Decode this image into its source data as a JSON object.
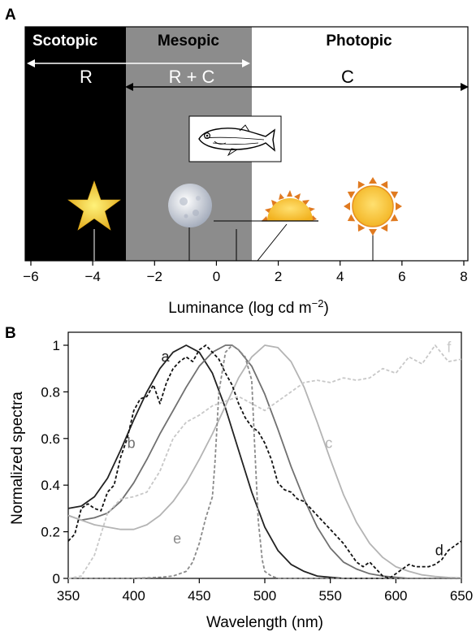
{
  "panel_a": {
    "letter": "A",
    "zones": {
      "scotopic": "Scotopic",
      "mesopic": "Mesopic",
      "photopic": "Photopic"
    },
    "spans": {
      "rods": "R",
      "rods_cones": "R + C",
      "cones": "C"
    },
    "icons": [
      "star-icon",
      "moon-icon",
      "rising-sun-icon",
      "sun-icon",
      "fish-icon"
    ],
    "colors": {
      "scotopic": "#000000",
      "mesopic": "#8c8c8c",
      "photopic": "#ffffff",
      "sun": "#f5c12e",
      "sun_rays": "#e07a20",
      "star": "#f6d23a"
    }
  },
  "panel_b": {
    "letter": "B"
  },
  "chart_data": [
    {
      "type": "line",
      "xlabel": "Luminance (log cd m",
      "xlabel_sup": "−2",
      "xlabel_close": ")",
      "xlim": [
        -6.5,
        8.2
      ],
      "xticks": [
        -6,
        -4,
        -2,
        0,
        2,
        4,
        6,
        8
      ],
      "xtick_labels": [
        "−6",
        "−4",
        "−2",
        "0",
        "2",
        "4",
        "6",
        "8"
      ],
      "zones": [
        {
          "name": "Scotopic",
          "from": -6.5,
          "to": -3
        },
        {
          "name": "Mesopic",
          "from": -3,
          "to": 1
        },
        {
          "name": "Photopic",
          "from": 1,
          "to": 8.2
        }
      ],
      "spans": [
        {
          "label": "R",
          "from": -6.5,
          "to": 1
        },
        {
          "label": "R + C",
          "from": -3,
          "to": 8.2
        },
        {
          "label": "C",
          "from": -3,
          "to": 8.2
        }
      ],
      "markers": [
        {
          "icon": "star-icon",
          "x": -4
        },
        {
          "icon": "moon-icon",
          "x": -0.9
        },
        {
          "icon": "rising-sun-icon",
          "x": 0.6
        },
        {
          "icon": "rising-sun-icon",
          "x": 1.2
        },
        {
          "icon": "sun-icon",
          "x": 5
        }
      ]
    },
    {
      "type": "line",
      "xlabel": "Wavelength (nm)",
      "ylabel": "Normalized spectra",
      "xlim": [
        350,
        650
      ],
      "ylim": [
        0,
        1.05
      ],
      "xticks": [
        350,
        400,
        450,
        500,
        550,
        600,
        650
      ],
      "xtick_labels": [
        "350",
        "400",
        "450",
        "500",
        "550",
        "600",
        "650"
      ],
      "yticks": [
        0,
        0.2,
        0.4,
        0.6,
        0.8,
        1
      ],
      "ytick_labels": [
        "0",
        "0.2",
        "0.4",
        "0.6",
        "0.8",
        "1"
      ],
      "series": [
        {
          "name": "a",
          "color": "#222222",
          "dash": false,
          "label_at": [
            421,
            0.93
          ],
          "x": [
            350,
            360,
            370,
            380,
            390,
            400,
            410,
            420,
            430,
            440,
            450,
            460,
            470,
            480,
            490,
            500,
            510,
            520,
            530,
            540,
            550,
            560,
            570,
            580,
            590,
            600,
            610,
            620,
            630,
            640,
            650
          ],
          "y": [
            0.3,
            0.31,
            0.35,
            0.43,
            0.55,
            0.68,
            0.8,
            0.9,
            0.97,
            1.0,
            0.97,
            0.88,
            0.73,
            0.55,
            0.37,
            0.22,
            0.12,
            0.06,
            0.03,
            0.01,
            0.005,
            0,
            0,
            0,
            0,
            0,
            0,
            0,
            0,
            0,
            0
          ]
        },
        {
          "name": "b",
          "color": "#707070",
          "dash": false,
          "label_at": [
            395,
            0.56
          ],
          "x": [
            350,
            360,
            370,
            380,
            390,
            400,
            410,
            420,
            430,
            440,
            450,
            460,
            470,
            475,
            480,
            490,
            500,
            510,
            520,
            530,
            540,
            550,
            560,
            570,
            580,
            590,
            600,
            610,
            620,
            630,
            640,
            650
          ],
          "y": [
            0.27,
            0.25,
            0.26,
            0.28,
            0.33,
            0.41,
            0.51,
            0.62,
            0.72,
            0.82,
            0.91,
            0.97,
            1.0,
            1.0,
            0.98,
            0.91,
            0.79,
            0.64,
            0.48,
            0.34,
            0.22,
            0.13,
            0.07,
            0.04,
            0.02,
            0.01,
            0.005,
            0,
            0,
            0,
            0,
            0
          ]
        },
        {
          "name": "c",
          "color": "#b4b4b4",
          "dash": false,
          "label_at": [
            546,
            0.56
          ],
          "x": [
            350,
            360,
            370,
            380,
            390,
            400,
            410,
            420,
            430,
            440,
            450,
            460,
            470,
            480,
            490,
            500,
            510,
            520,
            530,
            540,
            550,
            560,
            570,
            580,
            590,
            600,
            610,
            620,
            630,
            640,
            650
          ],
          "y": [
            0.27,
            0.25,
            0.23,
            0.22,
            0.21,
            0.21,
            0.23,
            0.27,
            0.33,
            0.41,
            0.51,
            0.62,
            0.74,
            0.86,
            0.95,
            1.0,
            0.99,
            0.93,
            0.82,
            0.67,
            0.51,
            0.36,
            0.24,
            0.15,
            0.09,
            0.05,
            0.03,
            0.015,
            0.008,
            0.004,
            0.002
          ]
        },
        {
          "name": "d",
          "color": "#111111",
          "dash": true,
          "label_at": [
            630,
            0.1
          ],
          "x": [
            350,
            355,
            360,
            365,
            370,
            375,
            380,
            385,
            390,
            395,
            400,
            405,
            410,
            415,
            420,
            425,
            430,
            435,
            440,
            445,
            450,
            455,
            460,
            465,
            470,
            475,
            480,
            485,
            490,
            495,
            500,
            505,
            510,
            515,
            520,
            525,
            530,
            535,
            540,
            545,
            550,
            555,
            560,
            565,
            570,
            575,
            580,
            585,
            590,
            595,
            600,
            605,
            610,
            615,
            620,
            625,
            630,
            635,
            640,
            645,
            650
          ],
          "y": [
            0.16,
            0.19,
            0.3,
            0.32,
            0.3,
            0.29,
            0.37,
            0.4,
            0.52,
            0.6,
            0.72,
            0.77,
            0.78,
            0.83,
            0.75,
            0.84,
            0.9,
            0.93,
            0.95,
            0.93,
            0.98,
            1.0,
            0.97,
            0.94,
            0.88,
            0.83,
            0.75,
            0.69,
            0.65,
            0.63,
            0.58,
            0.51,
            0.41,
            0.38,
            0.37,
            0.34,
            0.33,
            0.3,
            0.27,
            0.24,
            0.21,
            0.18,
            0.15,
            0.11,
            0.07,
            0.05,
            0.07,
            0.04,
            0.01,
            0.0,
            0.02,
            0.04,
            0.06,
            0.05,
            0.05,
            0.05,
            0.06,
            0.08,
            0.12,
            0.14,
            0.16
          ]
        },
        {
          "name": "e",
          "color": "#8a8a8a",
          "dash": true,
          "label_at": [
            430,
            0.15
          ],
          "x": [
            350,
            360,
            380,
            400,
            420,
            430,
            440,
            445,
            450,
            455,
            460,
            462,
            465,
            470,
            475,
            480,
            485,
            490,
            492,
            495,
            498,
            500,
            505,
            510,
            520,
            540,
            560,
            580,
            600,
            620,
            650
          ],
          "y": [
            0,
            0,
            0,
            0,
            0.005,
            0.01,
            0.03,
            0.07,
            0.15,
            0.26,
            0.35,
            0.5,
            0.8,
            0.97,
            1.0,
            0.98,
            0.95,
            0.85,
            0.6,
            0.25,
            0.08,
            0.03,
            0.01,
            0,
            0,
            0,
            0,
            0,
            0,
            0,
            0
          ]
        },
        {
          "name": "f",
          "color": "#c8c8c8",
          "dash": true,
          "label_at": [
            639,
            0.97
          ],
          "x": [
            350,
            360,
            370,
            380,
            390,
            400,
            410,
            420,
            430,
            440,
            450,
            460,
            470,
            480,
            490,
            500,
            510,
            520,
            530,
            540,
            550,
            560,
            570,
            580,
            590,
            600,
            610,
            620,
            630,
            640,
            650
          ],
          "y": [
            0.0,
            0.01,
            0.1,
            0.28,
            0.34,
            0.35,
            0.37,
            0.46,
            0.6,
            0.67,
            0.7,
            0.74,
            0.76,
            0.78,
            0.75,
            0.72,
            0.76,
            0.8,
            0.84,
            0.85,
            0.84,
            0.86,
            0.85,
            0.86,
            0.9,
            0.88,
            0.95,
            0.92,
            1.0,
            0.93,
            0.94
          ]
        }
      ]
    }
  ]
}
